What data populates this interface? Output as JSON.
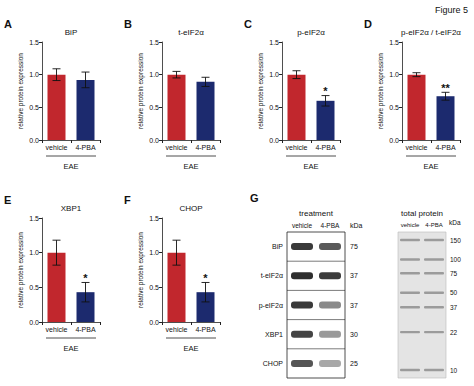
{
  "figure_label": "Figure 5",
  "chart_data": [
    {
      "type": "bar",
      "panel": "A",
      "title": "BiP",
      "categories": [
        "vehicle",
        "4-PBA"
      ],
      "xlabel": "EAE",
      "ylabel": "relative protein expression",
      "values": [
        1.0,
        0.92
      ],
      "errors": [
        0.09,
        0.12
      ],
      "colors": [
        "#c1272d",
        "#1c2a6e"
      ],
      "ylim": [
        0,
        1.5
      ],
      "yticks": [
        {
          "value": 0,
          "label": "0.0"
        },
        0.5,
        {
          "value": 1,
          "label": "1.0"
        },
        1.5
      ],
      "grid": false
    },
    {
      "type": "bar",
      "panel": "B",
      "title": "t-eIF2α",
      "categories": [
        "vehicle",
        "4-PBA"
      ],
      "xlabel": "EAE",
      "ylabel": "relative protein expression",
      "values": [
        1.0,
        0.89
      ],
      "errors": [
        0.05,
        0.07
      ],
      "colors": [
        "#c1272d",
        "#1c2a6e"
      ],
      "ylim": [
        0,
        1.5
      ],
      "yticks": [
        {
          "value": 0,
          "label": "0.0"
        },
        0.5,
        {
          "value": 1,
          "label": "1.0"
        },
        1.5
      ],
      "grid": false
    },
    {
      "type": "bar",
      "panel": "C",
      "title": "p-eIF2α",
      "categories": [
        "vehicle",
        "4-PBA"
      ],
      "xlabel": "EAE",
      "ylabel": "relative protein expression",
      "values": [
        1.0,
        0.6
      ],
      "errors": [
        0.06,
        0.08
      ],
      "significance": [
        null,
        "*"
      ],
      "colors": [
        "#c1272d",
        "#1c2a6e"
      ],
      "ylim": [
        0,
        1.5
      ],
      "yticks": [
        {
          "value": 0,
          "label": "0.0"
        },
        0.5,
        {
          "value": 1,
          "label": "1.0"
        },
        1.5
      ],
      "grid": false
    },
    {
      "type": "bar",
      "panel": "D",
      "title": "p-eIF2α / t-eIF2α",
      "categories": [
        "vehicle",
        "4-PBA"
      ],
      "xlabel": "EAE",
      "ylabel": "relative protein expression",
      "values": [
        1.0,
        0.67
      ],
      "errors": [
        0.03,
        0.06
      ],
      "significance": [
        null,
        "**"
      ],
      "colors": [
        "#c1272d",
        "#1c2a6e"
      ],
      "ylim": [
        0,
        1.5
      ],
      "yticks": [
        {
          "value": 0,
          "label": "0.0"
        },
        0.5,
        {
          "value": 1,
          "label": "1.0"
        },
        1.5
      ],
      "grid": false
    },
    {
      "type": "bar",
      "panel": "E",
      "title": "XBP1",
      "categories": [
        "vehicle",
        "4-PBA"
      ],
      "xlabel": "EAE",
      "ylabel": "relative protein expression",
      "values": [
        1.0,
        0.43
      ],
      "errors": [
        0.18,
        0.14
      ],
      "significance": [
        null,
        "*"
      ],
      "colors": [
        "#c1272d",
        "#1c2a6e"
      ],
      "ylim": [
        0,
        1.5
      ],
      "yticks": [
        {
          "value": 0,
          "label": "0.0"
        },
        0.5,
        {
          "value": 1,
          "label": "1.0"
        },
        1.5
      ],
      "grid": false
    },
    {
      "type": "bar",
      "panel": "F",
      "title": "CHOP",
      "categories": [
        "vehicle",
        "4-PBA"
      ],
      "xlabel": "EAE",
      "ylabel": "relative protein expression",
      "values": [
        1.0,
        0.43
      ],
      "errors": [
        0.18,
        0.14
      ],
      "significance": [
        null,
        "*"
      ],
      "colors": [
        "#c1272d",
        "#1c2a6e"
      ],
      "ylim": [
        0,
        1.5
      ],
      "yticks": [
        {
          "value": 0,
          "label": "0.0"
        },
        0.5,
        {
          "value": 1,
          "label": "1.0"
        },
        1.5
      ],
      "grid": false
    }
  ],
  "blot": {
    "panel": "G",
    "title": "treatment",
    "columns": [
      "vehicle",
      "4-PBA"
    ],
    "unit": "kDa",
    "rows": [
      {
        "name": "BiP",
        "kDa": 75
      },
      {
        "name": "t-eIF2α",
        "kDa": 37
      },
      {
        "name": "p-eIF2α",
        "kDa": 37
      },
      {
        "name": "XBP1",
        "kDa": 30
      },
      {
        "name": "CHOP",
        "kDa": 25
      }
    ]
  },
  "total_protein": {
    "title": "total protein",
    "columns": [
      "vehicle",
      "4-PBA"
    ],
    "unit": "kDa",
    "markers": [
      150,
      100,
      75,
      50,
      37,
      22,
      10
    ]
  }
}
